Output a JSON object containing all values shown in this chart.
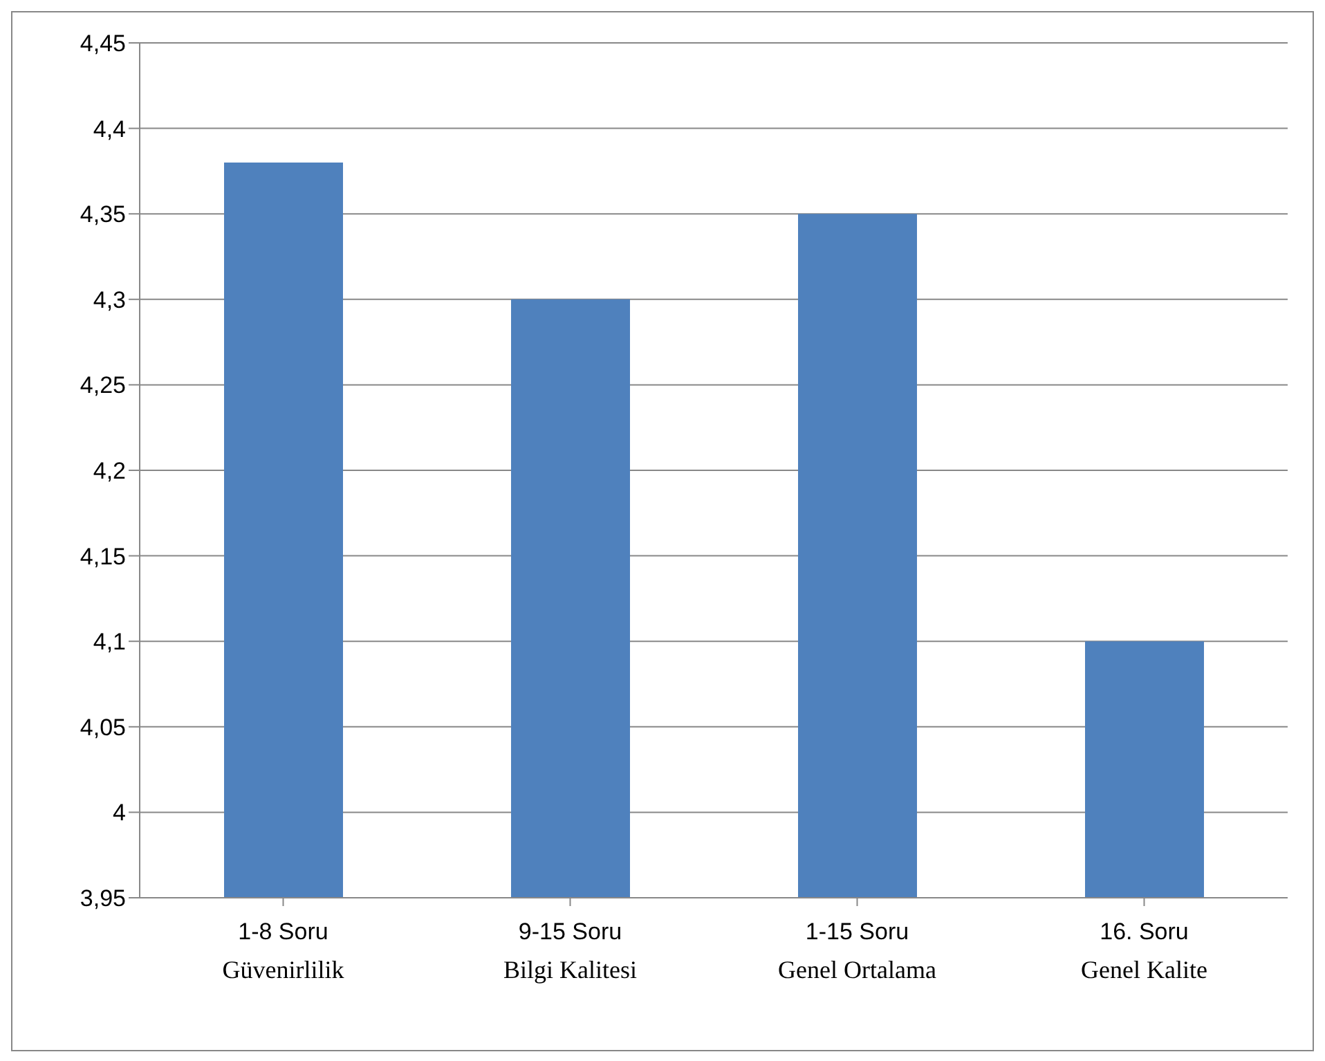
{
  "chart_data": {
    "type": "bar",
    "categories": [
      "1-8 Soru",
      "9-15 Soru",
      "1-15 Soru",
      "16. Soru"
    ],
    "values": [
      4.38,
      4.3,
      4.35,
      4.1
    ],
    "color": "#4f81bd",
    "ylim": [
      3.95,
      4.45
    ],
    "yticks": [
      {
        "value": 3.95,
        "label": "3,95"
      },
      {
        "value": 4,
        "label": "4"
      },
      {
        "value": 4.05,
        "label": "4,05"
      },
      {
        "value": 4.1,
        "label": "4,1"
      },
      {
        "value": 4.15,
        "label": "4,15"
      },
      {
        "value": 4.2,
        "label": "4,2"
      },
      {
        "value": 4.25,
        "label": "4,25"
      },
      {
        "value": 4.3,
        "label": "4,3"
      },
      {
        "value": 4.35,
        "label": "4,35"
      },
      {
        "value": 4.4,
        "label": "4,4"
      },
      {
        "value": 4.45,
        "label": "4,45"
      }
    ],
    "grid": "y",
    "legend": false,
    "annotations": [
      "Güvenirlilik",
      "Bilgi Kalitesi",
      "Genel Ortalama",
      "Genel Kalite"
    ]
  }
}
